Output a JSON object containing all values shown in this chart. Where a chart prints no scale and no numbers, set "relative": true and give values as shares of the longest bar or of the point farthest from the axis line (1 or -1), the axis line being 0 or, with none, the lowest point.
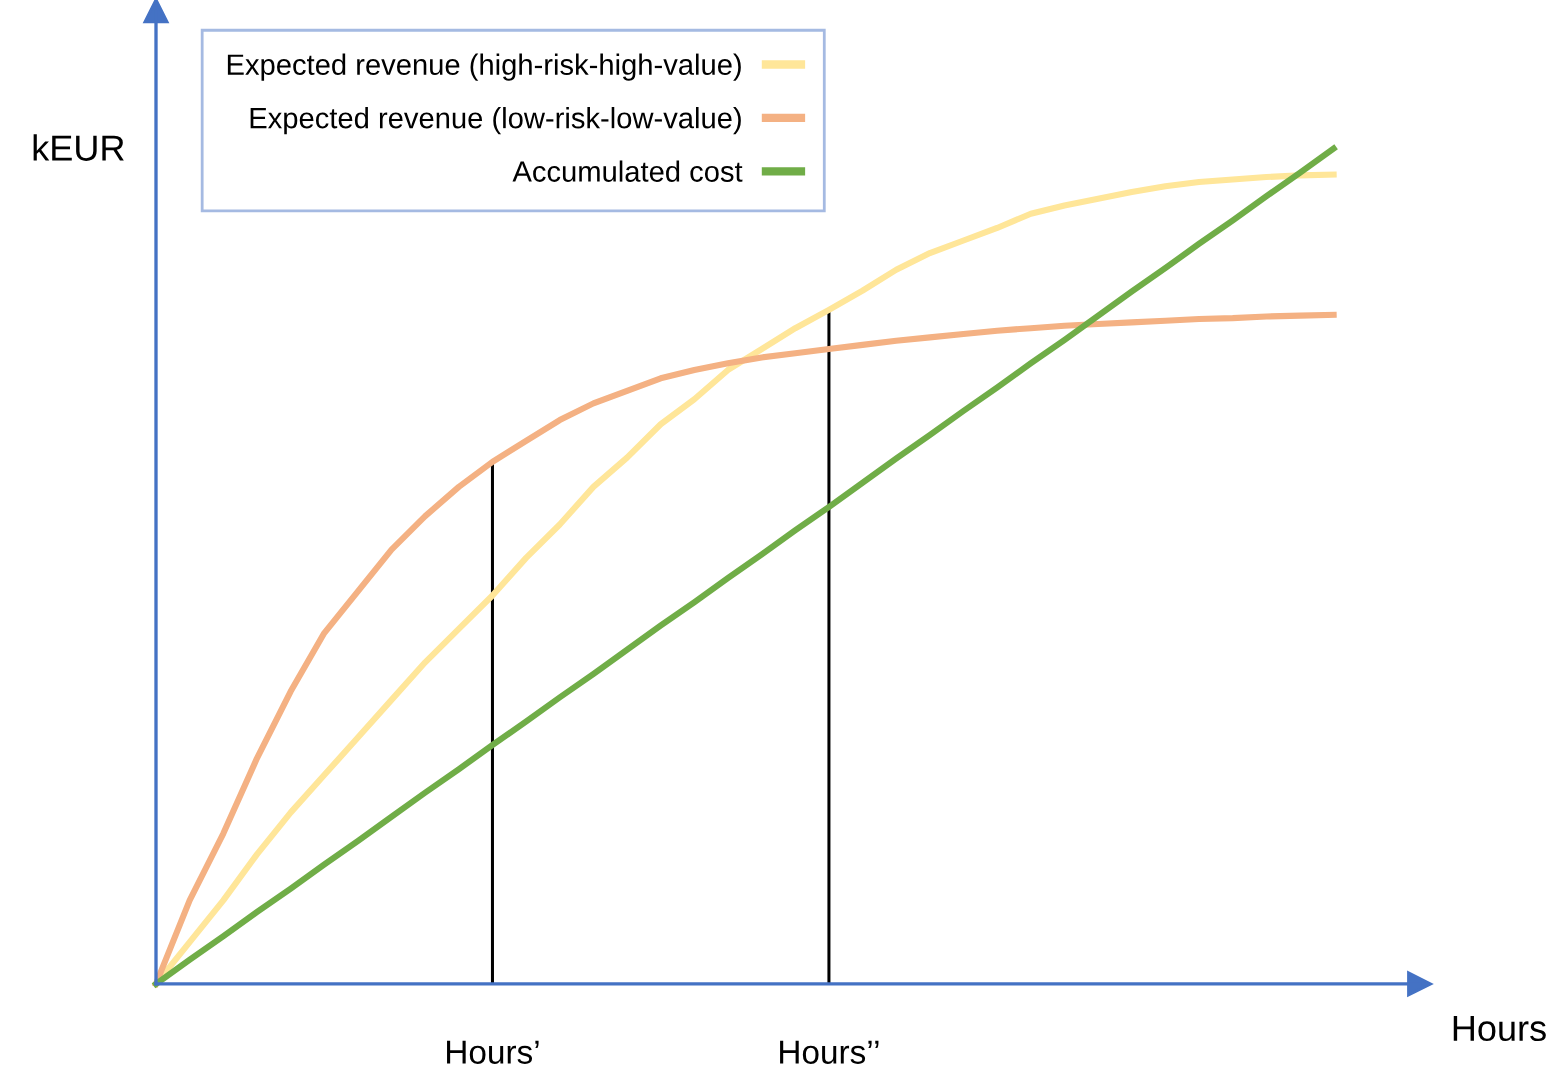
{
  "chart_data": {
    "type": "line",
    "relative": true,
    "xlabel": "Hours",
    "ylabel": "kEUR",
    "categories": [
      null,
      null,
      null,
      null,
      null,
      null,
      null,
      null,
      null,
      null,
      "Hours’",
      null,
      null,
      null,
      null,
      null,
      null,
      null,
      null,
      null,
      "Hours’’",
      null,
      null,
      null,
      null,
      null,
      null,
      null,
      null,
      null,
      null,
      null,
      null,
      null,
      null,
      null
    ],
    "tick_labels": "x",
    "grid": false,
    "legend": "top left",
    "marker": "none",
    "line_style": "solid",
    "series": [
      {
        "name": "Expected revenue (high-risk-high-value)",
        "color": "#ffe699",
        "values": [
          0,
          0.05,
          0.1,
          0.155,
          0.205,
          0.25,
          0.295,
          0.34,
          0.385,
          0.425,
          0.465,
          0.51,
          0.55,
          0.595,
          0.63,
          0.67,
          0.7,
          0.735,
          0.76,
          0.785,
          0.807,
          0.83,
          0.855,
          0.875,
          0.89,
          0.905,
          0.922,
          0.932,
          0.94,
          0.948,
          0.955,
          0.96,
          0.963,
          0.966,
          0.968,
          0.969
        ]
      },
      {
        "name": "Expected revenue (low-risk-low-value)",
        "color": "#f4b183",
        "values": [
          0,
          0.1,
          0.18,
          0.27,
          0.35,
          0.42,
          0.47,
          0.52,
          0.56,
          0.595,
          0.625,
          0.65,
          0.675,
          0.695,
          0.71,
          0.725,
          0.735,
          0.743,
          0.75,
          0.755,
          0.76,
          0.765,
          0.77,
          0.774,
          0.778,
          0.782,
          0.785,
          0.788,
          0.79,
          0.792,
          0.794,
          0.796,
          0.797,
          0.799,
          0.8,
          0.801
        ]
      },
      {
        "name": "Accumulated cost",
        "color": "#70ad47",
        "values": [
          0,
          0.029,
          0.057,
          0.086,
          0.114,
          0.143,
          0.171,
          0.2,
          0.229,
          0.257,
          0.286,
          0.314,
          0.343,
          0.371,
          0.4,
          0.429,
          0.457,
          0.486,
          0.514,
          0.543,
          0.571,
          0.6,
          0.629,
          0.657,
          0.686,
          0.714,
          0.743,
          0.771,
          0.8,
          0.829,
          0.857,
          0.886,
          0.914,
          0.943,
          0.971,
          1.0
        ]
      },
      {
        "type": "bar",
        "color": "#000000",
        "values": [
          null,
          null,
          null,
          null,
          null,
          null,
          null,
          null,
          null,
          null,
          0.625,
          null,
          null,
          null,
          null,
          null,
          null,
          null,
          null,
          null,
          0.807,
          null,
          null,
          null,
          null,
          null,
          null,
          null,
          null,
          null,
          null,
          null,
          null,
          null,
          null,
          null
        ]
      }
    ]
  }
}
